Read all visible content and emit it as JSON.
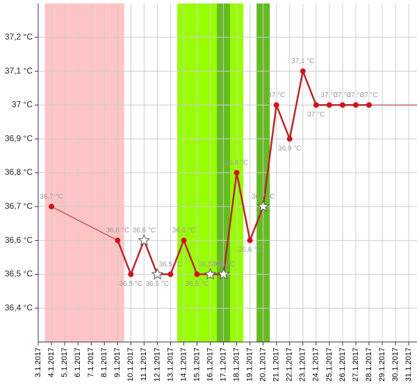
{
  "chart_data": {
    "type": "line",
    "categories": [
      "3.1.2017",
      "4.1.2017",
      "5.1.2017",
      "6.1.2017",
      "7.1.2017",
      "8.1.2017",
      "9.1.2017",
      "10.1.2017",
      "11.1.2017",
      "12.1.2017",
      "13.1.2017",
      "14.1.2017",
      "15.1.2017",
      "16.1.2017",
      "17.1.2017",
      "18.1.2017",
      "19.1.2017",
      "20.1.2017",
      "21.1.2017",
      "22.1.2017",
      "23.1.2017",
      "24.1.2017",
      "25.1.2017",
      "26.1.2017",
      "27.1.2017",
      "28.1.2017",
      "29.1.2017",
      "30.1.2017",
      "31.1.2017"
    ],
    "series": [
      {
        "color": "#b5262b",
        "marker_color": "#d0121b",
        "values": [
          null,
          36.7,
          null,
          null,
          null,
          null,
          36.6,
          36.5,
          36.6,
          36.5,
          36.5,
          36.6,
          36.5,
          36.5,
          36.5,
          36.8,
          36.6,
          36.7,
          37.0,
          36.9,
          37.1,
          37.0,
          37.0,
          37.0,
          37.0,
          37.0,
          null,
          null,
          null
        ],
        "value_labels": [
          null,
          "36,7 °C",
          null,
          null,
          null,
          null,
          "36,6 °C",
          "36,5 °C",
          "36,6 °C",
          "36,5 °C",
          "36,5 °C",
          "36,6 °C",
          "36,5 °C",
          "36,5 °C",
          "36,5 °C",
          "36,8 °C",
          "36,6 °C",
          "36,7 °C",
          "37 °C",
          "36,9 °C",
          "37,1 °C",
          "37 °C",
          "37 °C",
          "37 °C",
          "37 °C",
          "37 °C",
          null,
          null,
          null
        ],
        "markers": [
          null,
          "circle",
          null,
          null,
          null,
          null,
          "circle",
          "circle",
          "star",
          "star",
          "circle",
          "circle",
          "circle",
          "star",
          "star",
          "circle",
          "circle",
          "star",
          "circle",
          "circle",
          "circle",
          "circle",
          "circle",
          "circle",
          "circle",
          "circle",
          null,
          null,
          null
        ]
      }
    ],
    "bands": [
      {
        "from": "4.1.2017",
        "to": "9.1.2017",
        "color": "#ffc4c6"
      },
      {
        "from": "14.1.2017",
        "to": "18.1.2017",
        "color": "#99ff00"
      },
      {
        "from": "17.1.2017",
        "to": "17.1.2017",
        "color": "#66bb22"
      },
      {
        "from": "20.1.2017",
        "to": "20.1.2017",
        "color": "#66bb22"
      }
    ],
    "ylim": [
      36.3,
      37.3
    ],
    "yticks": [
      {
        "value": 36.4,
        "label": "36,4 °C"
      },
      {
        "value": 36.5,
        "label": "36,5 °C"
      },
      {
        "value": 36.6,
        "label": "36,6 °C"
      },
      {
        "value": 36.7,
        "label": "36,7 °C"
      },
      {
        "value": 36.8,
        "label": "36,8 °C"
      },
      {
        "value": 36.9,
        "label": "36,9 °C"
      },
      {
        "value": 37.0,
        "label": "37 °C"
      },
      {
        "value": 37.1,
        "label": "37,1 °C"
      },
      {
        "value": 37.2,
        "label": "37,2 °C"
      }
    ],
    "grid": true
  }
}
